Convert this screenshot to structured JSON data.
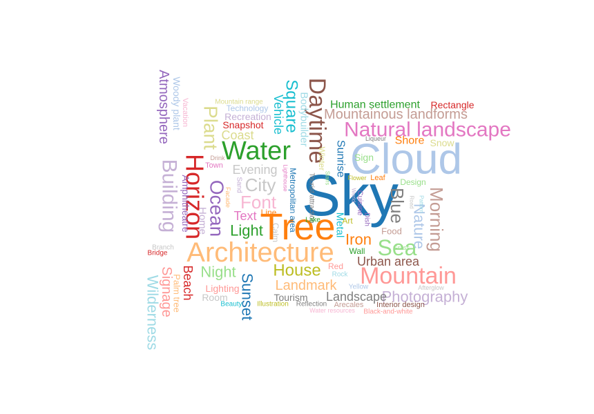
{
  "words": [
    {
      "text": "Sky",
      "color": "#1f77b4"
    },
    {
      "text": "Tree",
      "color": "#ff7f0e"
    },
    {
      "text": "Cloud",
      "color": "#aec7e8"
    },
    {
      "text": "Architecture",
      "color": "#ffbb78"
    },
    {
      "text": "Water",
      "color": "#2ca02c"
    },
    {
      "text": "Daytime",
      "color": "#8c564b"
    },
    {
      "text": "Natural landscape",
      "color": "#e377c2"
    },
    {
      "text": "Horizon",
      "color": "#d62728"
    },
    {
      "text": "Mountain",
      "color": "#ff9896"
    },
    {
      "text": "Building",
      "color": "#c5b0d5"
    },
    {
      "text": "Ocean",
      "color": "#9467bd"
    },
    {
      "text": "Sea",
      "color": "#98df8a"
    },
    {
      "text": "Morning",
      "color": "#c49c94"
    },
    {
      "text": "Mountainous landforms",
      "color": "#c49c94"
    },
    {
      "text": "Plant",
      "color": "#dbdb8d"
    },
    {
      "text": "Blue",
      "color": "#7f7f7f"
    },
    {
      "text": "Square",
      "color": "#17becf"
    },
    {
      "text": "Photography",
      "color": "#c5b0d5"
    },
    {
      "text": "Wilderness",
      "color": "#9edae5"
    },
    {
      "text": "House",
      "color": "#bcbd22"
    },
    {
      "text": "Font",
      "color": "#f7b6d2"
    },
    {
      "text": "City",
      "color": "#c7c7c7"
    },
    {
      "text": "Atmosphere",
      "color": "#9467bd"
    },
    {
      "text": "Sunset",
      "color": "#1f77b4"
    },
    {
      "text": "Nature",
      "color": "#aec7e8"
    },
    {
      "text": "Iron",
      "color": "#ff7f0e"
    },
    {
      "text": "Urban area",
      "color": "#8c564b"
    },
    {
      "text": "Landmark",
      "color": "#ffbb78"
    },
    {
      "text": "Landscape",
      "color": "#7f7f7f"
    },
    {
      "text": "Signage",
      "color": "#ff9896"
    },
    {
      "text": "Light",
      "color": "#2ca02c"
    },
    {
      "text": "Night",
      "color": "#98df8a"
    },
    {
      "text": "Human settlement",
      "color": "#2ca02c"
    },
    {
      "text": "Beach",
      "color": "#d62728"
    },
    {
      "text": "Evening",
      "color": "#c7c7c7"
    },
    {
      "text": "Coast",
      "color": "#dbdb8d"
    },
    {
      "text": "Text",
      "color": "#e377c2"
    },
    {
      "text": "Vehicle",
      "color": "#17becf"
    },
    {
      "text": "Shore",
      "color": "#ff7f0e"
    },
    {
      "text": "Snow",
      "color": "#dbdb8d"
    },
    {
      "text": "Sunrise",
      "color": "#1f77b4"
    },
    {
      "text": "Bodybuilder",
      "color": "#9edae5"
    },
    {
      "text": "Metal",
      "color": "#17becf"
    },
    {
      "text": "Woody plant",
      "color": "#aec7e8"
    },
    {
      "text": "Amphitheatre",
      "color": "#9467bd"
    },
    {
      "text": "Home",
      "color": "#c5b0d5"
    },
    {
      "text": "Palm tree",
      "color": "#ffbb78"
    },
    {
      "text": "Rectangle",
      "color": "#d62728"
    },
    {
      "text": "Snapshot",
      "color": "#d62728"
    },
    {
      "text": "Recreation",
      "color": "#c5b0d5"
    },
    {
      "text": "Technology",
      "color": "#aec7e8"
    },
    {
      "text": "Sign",
      "color": "#98df8a"
    },
    {
      "text": "Tourism",
      "color": "#7f7f7f"
    },
    {
      "text": "Lighting",
      "color": "#ff9896"
    },
    {
      "text": "Room",
      "color": "#c7c7c7"
    },
    {
      "text": "Food",
      "color": "#c49c94"
    },
    {
      "text": "Design",
      "color": "#98df8a"
    },
    {
      "text": "Art",
      "color": "#bcbd22"
    },
    {
      "text": "Wall",
      "color": "#2ca02c"
    },
    {
      "text": "Red",
      "color": "#ff9896"
    },
    {
      "text": "Calm",
      "color": "#c7c7c7"
    },
    {
      "text": "Cuisine",
      "color": "#9467bd"
    },
    {
      "text": "Winter",
      "color": "#dbdb8d"
    },
    {
      "text": "Metropolitan area",
      "color": "#1f77b4"
    },
    {
      "text": "Tourist attraction",
      "color": "#7f7f7f"
    },
    {
      "text": "Vacation",
      "color": "#f7b6d2"
    },
    {
      "text": "Mountain range",
      "color": "#dbdb8d"
    },
    {
      "text": "Town",
      "color": "#e377c2"
    },
    {
      "text": "Sand",
      "color": "#c5b0d5"
    },
    {
      "text": "Line",
      "color": "#ff7f0e"
    },
    {
      "text": "Lake",
      "color": "#2ca02c"
    },
    {
      "text": "Dish",
      "color": "#9467bd"
    },
    {
      "text": "Leaf",
      "color": "#ff7f0e"
    },
    {
      "text": "Flower",
      "color": "#bcbd22"
    },
    {
      "text": "Liqueur",
      "color": "#7f7f7f"
    },
    {
      "text": "Rock",
      "color": "#9edae5"
    },
    {
      "text": "Yellow",
      "color": "#aec7e8"
    },
    {
      "text": "Beauty",
      "color": "#17becf"
    },
    {
      "text": "Illustration",
      "color": "#bcbd22"
    },
    {
      "text": "Reflection",
      "color": "#7f7f7f"
    },
    {
      "text": "Arecales",
      "color": "#c49c94"
    },
    {
      "text": "Interior design",
      "color": "#8c564b"
    },
    {
      "text": "Water resources",
      "color": "#f7b6d2"
    },
    {
      "text": "Black-and-white",
      "color": "#ff9896"
    },
    {
      "text": "Grass",
      "color": "#98df8a"
    },
    {
      "text": "Afterglow",
      "color": "#c7c7c7"
    },
    {
      "text": "Branch",
      "color": "#c7c7c7"
    },
    {
      "text": "Bridge",
      "color": "#d62728"
    },
    {
      "text": "Facade",
      "color": "#ffbb78"
    },
    {
      "text": "Drink",
      "color": "#c49c94"
    },
    {
      "text": "Lighthouse",
      "color": "#e377c2"
    },
    {
      "text": "Stairs",
      "color": "#98df8a"
    },
    {
      "text": "Road",
      "color": "#c7c7c7"
    },
    {
      "text": "Pattern",
      "color": "#9edae5"
    },
    {
      "text": "World",
      "color": "#c5b0d5"
    }
  ]
}
